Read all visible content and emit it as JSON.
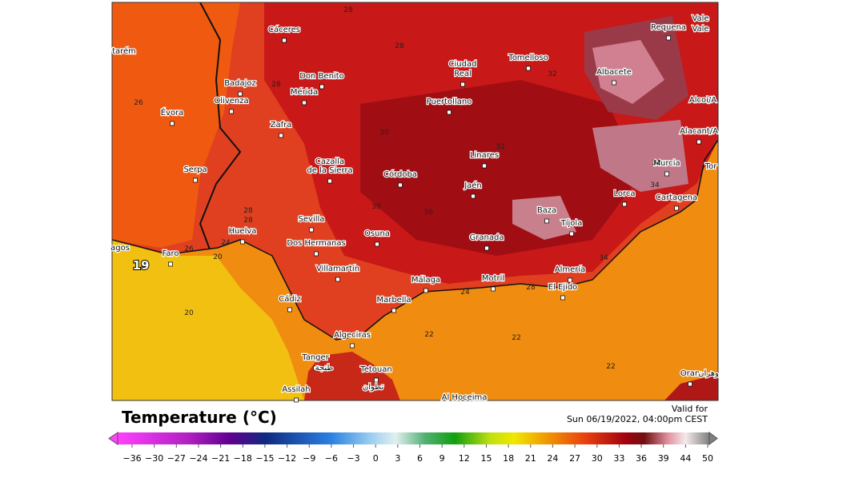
{
  "map": {
    "cities": [
      "Cáceres",
      "Requena",
      "Vale",
      "Vale",
      "tarém",
      "Ciudad",
      "Real",
      "Tomelloso",
      "Badajoz",
      "Don Benito",
      "Mérida",
      "Albacete",
      "Alcoi/A",
      "Puertollano",
      "Évora",
      "Olivenza",
      "Zafra",
      "Alacant/A",
      "Linares",
      "Murcia",
      "Tor",
      "Serpa",
      "Cazalla",
      "de la Sierra",
      "Córdoba",
      "Jaén",
      "Lorca",
      "Cartagena",
      "Huelva",
      "Sevilla",
      "Baza",
      "Tíjola",
      "Osuna",
      "Dos Hermanas",
      "Granada",
      "agos",
      "Faro",
      "Villamartín",
      "Almería",
      "Málaga",
      "Motril",
      "El Ejido",
      "Cádiz",
      "Marbella",
      "Algeciras",
      "Tanger",
      "طنجة",
      "Tetouan",
      "تطوان",
      "Assilah",
      "Al Hoceima",
      "Oran",
      "وهران"
    ],
    "contour_labels": [
      28,
      28,
      28,
      26,
      30,
      32,
      32,
      30,
      30,
      28,
      28,
      24,
      26,
      20,
      19,
      20,
      22,
      22,
      22,
      24,
      28,
      34,
      34,
      32
    ]
  },
  "legend": {
    "title": "Temperature (°C)",
    "valid_for": "Valid for",
    "valid_time": "Sun 06/19/2022, 04:00pm CEST",
    "ticks": [
      {
        "value": -36,
        "label": "−36"
      },
      {
        "value": -30,
        "label": "−30"
      },
      {
        "value": -27,
        "label": "−27"
      },
      {
        "value": -24,
        "label": "−24"
      },
      {
        "value": -21,
        "label": "−21"
      },
      {
        "value": -18,
        "label": "−18"
      },
      {
        "value": -15,
        "label": "−15"
      },
      {
        "value": -12,
        "label": "−12"
      },
      {
        "value": -9,
        "label": "−9"
      },
      {
        "value": -6,
        "label": "−6"
      },
      {
        "value": -3,
        "label": "−3"
      },
      0,
      3,
      6,
      9,
      12,
      15,
      18,
      21,
      24,
      27,
      30,
      33,
      36,
      39,
      44,
      50
    ]
  }
}
